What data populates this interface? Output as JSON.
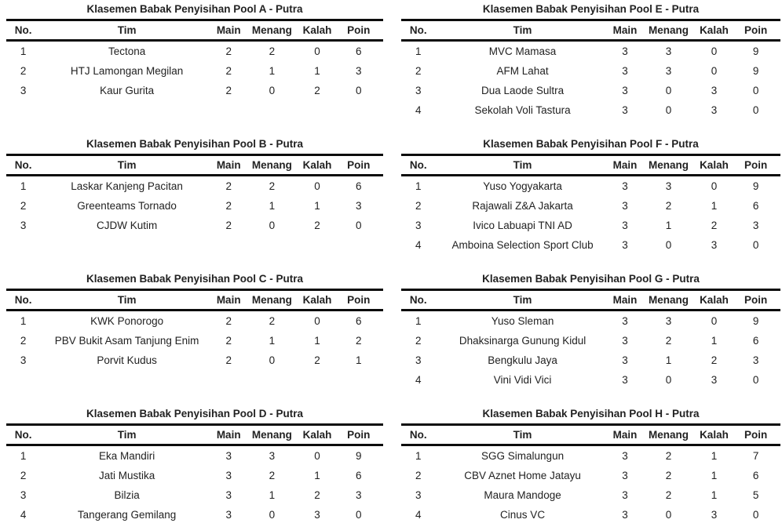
{
  "page": {
    "background": "#ffffff",
    "text_color": "#222222",
    "rule_color": "#0c0c0c"
  },
  "columns": [
    "No.",
    "Tim",
    "Main",
    "Menang",
    "Kalah",
    "Poin"
  ],
  "cell_keys": [
    "no",
    "tim",
    "main",
    "menang",
    "kalah",
    "poin"
  ],
  "chart_data": [
    {
      "type": "table",
      "title": "Klasemen Babak Penyisihan Pool A - Putra",
      "columns": [
        "No.",
        "Tim",
        "Main",
        "Menang",
        "Kalah",
        "Poin"
      ],
      "rows": [
        [
          "1",
          "Tectona",
          "2",
          "2",
          "0",
          "6"
        ],
        [
          "2",
          "HTJ Lamongan Megilan",
          "2",
          "1",
          "1",
          "3"
        ],
        [
          "3",
          "Kaur Gurita",
          "2",
          "0",
          "2",
          "0"
        ]
      ]
    },
    {
      "type": "table",
      "title": "Klasemen Babak Penyisihan Pool E - Putra",
      "columns": [
        "No.",
        "Tim",
        "Main",
        "Menang",
        "Kalah",
        "Poin"
      ],
      "rows": [
        [
          "1",
          "MVC Mamasa",
          "3",
          "3",
          "0",
          "9"
        ],
        [
          "2",
          "AFM Lahat",
          "3",
          "3",
          "0",
          "9"
        ],
        [
          "3",
          "Dua Laode Sultra",
          "3",
          "0",
          "3",
          "0"
        ],
        [
          "4",
          "Sekolah Voli Tastura",
          "3",
          "0",
          "3",
          "0"
        ]
      ]
    },
    {
      "type": "table",
      "title": "Klasemen Babak Penyisihan Pool B - Putra",
      "columns": [
        "No.",
        "Tim",
        "Main",
        "Menang",
        "Kalah",
        "Poin"
      ],
      "rows": [
        [
          "1",
          "Laskar Kanjeng Pacitan",
          "2",
          "2",
          "0",
          "6"
        ],
        [
          "2",
          "Greenteams Tornado",
          "2",
          "1",
          "1",
          "3"
        ],
        [
          "3",
          "CJDW Kutim",
          "2",
          "0",
          "2",
          "0"
        ]
      ]
    },
    {
      "type": "table",
      "title": "Klasemen Babak Penyisihan Pool F - Putra",
      "columns": [
        "No.",
        "Tim",
        "Main",
        "Menang",
        "Kalah",
        "Poin"
      ],
      "rows": [
        [
          "1",
          "Yuso Yogyakarta",
          "3",
          "3",
          "0",
          "9"
        ],
        [
          "2",
          "Rajawali Z&A Jakarta",
          "3",
          "2",
          "1",
          "6"
        ],
        [
          "3",
          "Ivico Labuapi TNI AD",
          "3",
          "1",
          "2",
          "3"
        ],
        [
          "4",
          "Amboina Selection Sport Club",
          "3",
          "0",
          "3",
          "0"
        ]
      ]
    },
    {
      "type": "table",
      "title": "Klasemen Babak Penyisihan Pool C - Putra",
      "columns": [
        "No.",
        "Tim",
        "Main",
        "Menang",
        "Kalah",
        "Poin"
      ],
      "rows": [
        [
          "1",
          "KWK Ponorogo",
          "2",
          "2",
          "0",
          "6"
        ],
        [
          "2",
          "PBV Bukit Asam Tanjung Enim",
          "2",
          "1",
          "1",
          "2"
        ],
        [
          "3",
          "Porvit Kudus",
          "2",
          "0",
          "2",
          "1"
        ]
      ]
    },
    {
      "type": "table",
      "title": "Klasemen Babak Penyisihan Pool G - Putra",
      "columns": [
        "No.",
        "Tim",
        "Main",
        "Menang",
        "Kalah",
        "Poin"
      ],
      "rows": [
        [
          "1",
          "Yuso Sleman",
          "3",
          "3",
          "0",
          "9"
        ],
        [
          "2",
          "Dhaksinarga Gunung Kidul",
          "3",
          "2",
          "1",
          "6"
        ],
        [
          "3",
          "Bengkulu Jaya",
          "3",
          "1",
          "2",
          "3"
        ],
        [
          "4",
          "Vini Vidi Vici",
          "3",
          "0",
          "3",
          "0"
        ]
      ]
    },
    {
      "type": "table",
      "title": "Klasemen Babak Penyisihan Pool D - Putra",
      "columns": [
        "No.",
        "Tim",
        "Main",
        "Menang",
        "Kalah",
        "Poin"
      ],
      "rows": [
        [
          "1",
          "Eka Mandiri",
          "3",
          "3",
          "0",
          "9"
        ],
        [
          "2",
          "Jati Mustika",
          "3",
          "2",
          "1",
          "6"
        ],
        [
          "3",
          "Bilzia",
          "3",
          "1",
          "2",
          "3"
        ],
        [
          "4",
          "Tangerang Gemilang",
          "3",
          "0",
          "3",
          "0"
        ]
      ]
    },
    {
      "type": "table",
      "title": "Klasemen Babak Penyisihan Pool H - Putra",
      "columns": [
        "No.",
        "Tim",
        "Main",
        "Menang",
        "Kalah",
        "Poin"
      ],
      "rows": [
        [
          "1",
          "SGG Simalungun",
          "3",
          "2",
          "1",
          "7"
        ],
        [
          "2",
          "CBV Aznet Home Jatayu",
          "3",
          "2",
          "1",
          "6"
        ],
        [
          "3",
          "Maura Mandoge",
          "3",
          "2",
          "1",
          "5"
        ],
        [
          "4",
          "Cinus VC",
          "3",
          "0",
          "3",
          "0"
        ]
      ]
    }
  ]
}
